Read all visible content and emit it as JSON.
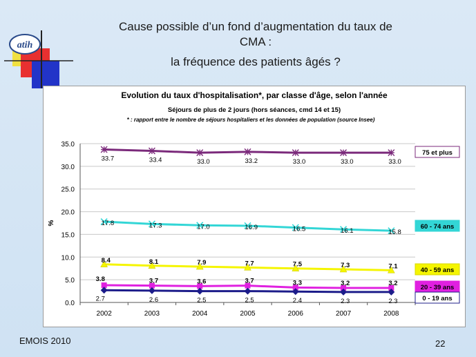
{
  "slide": {
    "title_line1": "Cause possible d’un fond d’augmentation du taux de",
    "title_line2": "CMA :",
    "subtitle": "la fréquence des patients âgés ?",
    "footer_left": "EMOIS 2010",
    "page_number": "22",
    "logo_text": "atih"
  },
  "chart_data": {
    "type": "line",
    "title": "Evolution du taux d'hospitalisation*, par classe d'âge, selon l'année",
    "subtitle": "Séjours de plus de 2 jours (hors séances, cmd 14 et 15)",
    "note": "* : rapport entre le nombre de séjours hospitaliers et les données de population (source Insee)",
    "xlabel": "",
    "ylabel": "%",
    "ylim": [
      0,
      35
    ],
    "yticks": [
      "0.0",
      "5.0",
      "10.0",
      "15.0",
      "20.0",
      "25.0",
      "30.0",
      "35.0"
    ],
    "categories": [
      "2002",
      "2003",
      "2004",
      "2005",
      "2006",
      "2007",
      "2008"
    ],
    "grid": true,
    "series": [
      {
        "name": "75 et plus",
        "values": [
          33.7,
          33.4,
          33.0,
          33.2,
          33.0,
          33.0,
          33.0
        ],
        "labels": [
          "33.7",
          "33.4",
          "33.0",
          "33.2",
          "33.0",
          "33.0",
          "33.0"
        ],
        "color": "#7b2a7b",
        "marker": "star",
        "legend_bg": "#ffffff",
        "legend_border": "#7b2a7b"
      },
      {
        "name": "60 - 74 ans",
        "values": [
          17.8,
          17.3,
          17.0,
          16.9,
          16.5,
          16.1,
          15.8
        ],
        "labels": [
          "17.8",
          "17.3",
          "17.0",
          "16.9",
          "16.5",
          "16.1",
          "15.8"
        ],
        "color": "#33d6d6",
        "marker": "x",
        "legend_bg": "#33d6d6",
        "legend_border": "#33d6d6"
      },
      {
        "name": "40 - 59 ans",
        "values": [
          8.4,
          8.1,
          7.9,
          7.7,
          7.5,
          7.3,
          7.1
        ],
        "labels": [
          "8.4",
          "8.1",
          "7.9",
          "7.7",
          "7.5",
          "7.3",
          "7.1"
        ],
        "color": "#f5f500",
        "marker": "triangle",
        "legend_bg": "#f5f500",
        "legend_border": "#d8d800"
      },
      {
        "name": "20 - 39 ans",
        "values": [
          3.8,
          3.7,
          3.6,
          3.7,
          3.3,
          3.2,
          3.2
        ],
        "labels": [
          "3.8",
          "3.7",
          "3.6",
          "3.7",
          "3.3",
          "3.2",
          "3.2"
        ],
        "color": "#e020e0",
        "marker": "square",
        "legend_bg": "#e020e0",
        "legend_border": "#e020e0"
      },
      {
        "name": "0 - 19 ans",
        "values": [
          2.7,
          2.6,
          2.5,
          2.5,
          2.4,
          2.3,
          2.3
        ],
        "labels": [
          "2.7",
          "2.6",
          "2.5",
          "2.5",
          "2.4",
          "2.3",
          "2.3"
        ],
        "color": "#1c1c8a",
        "marker": "diamond",
        "legend_bg": "#ffffff",
        "legend_border": "#1c1c8a"
      }
    ]
  }
}
